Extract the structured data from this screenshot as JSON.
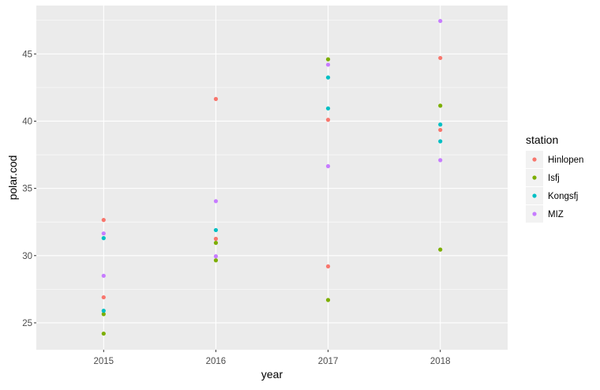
{
  "chart_data": {
    "type": "scatter",
    "title": "",
    "xlabel": "year",
    "ylabel": "polar.cod",
    "x_ticks": [
      "2015",
      "2016",
      "2017",
      "2018"
    ],
    "y_ticks": [
      25,
      30,
      35,
      40,
      45
    ],
    "xlim": [
      2014.4,
      2018.6
    ],
    "ylim": [
      23.0,
      48.6
    ],
    "grid": true,
    "legend": {
      "title": "station",
      "position": "right"
    },
    "series": [
      {
        "name": "Hinlopen",
        "color": "#F8766D",
        "points": [
          {
            "x": 2015,
            "y": 32.65
          },
          {
            "x": 2015,
            "y": 26.9
          },
          {
            "x": 2016,
            "y": 41.65
          },
          {
            "x": 2016,
            "y": 31.25
          },
          {
            "x": 2017,
            "y": 40.1
          },
          {
            "x": 2017,
            "y": 29.2
          },
          {
            "x": 2018,
            "y": 44.7
          },
          {
            "x": 2018,
            "y": 39.35
          }
        ]
      },
      {
        "name": "Isfj",
        "color": "#7CAE00",
        "points": [
          {
            "x": 2015,
            "y": 25.65
          },
          {
            "x": 2015,
            "y": 24.2
          },
          {
            "x": 2016,
            "y": 30.95
          },
          {
            "x": 2016,
            "y": 29.65
          },
          {
            "x": 2017,
            "y": 44.6
          },
          {
            "x": 2017,
            "y": 26.7
          },
          {
            "x": 2018,
            "y": 41.15
          },
          {
            "x": 2018,
            "y": 30.45
          }
        ]
      },
      {
        "name": "Kongsfj",
        "color": "#00BFC4",
        "points": [
          {
            "x": 2015,
            "y": 31.3
          },
          {
            "x": 2015,
            "y": 25.9
          },
          {
            "x": 2016,
            "y": 31.9
          },
          {
            "x": 2017,
            "y": 43.25
          },
          {
            "x": 2017,
            "y": 40.95
          },
          {
            "x": 2018,
            "y": 39.75
          },
          {
            "x": 2018,
            "y": 38.5
          }
        ]
      },
      {
        "name": "MIZ",
        "color": "#C77CFF",
        "points": [
          {
            "x": 2015,
            "y": 31.65
          },
          {
            "x": 2015,
            "y": 28.5
          },
          {
            "x": 2016,
            "y": 34.05
          },
          {
            "x": 2016,
            "y": 29.95
          },
          {
            "x": 2017,
            "y": 44.2
          },
          {
            "x": 2017,
            "y": 36.65
          },
          {
            "x": 2018,
            "y": 47.45
          },
          {
            "x": 2018,
            "y": 37.1
          }
        ]
      }
    ]
  },
  "style": {
    "panel_background": "#EBEBEB",
    "grid_color": "#FFFFFF",
    "tick_color": "#333333",
    "tick_label_color": "#4D4D4D"
  }
}
